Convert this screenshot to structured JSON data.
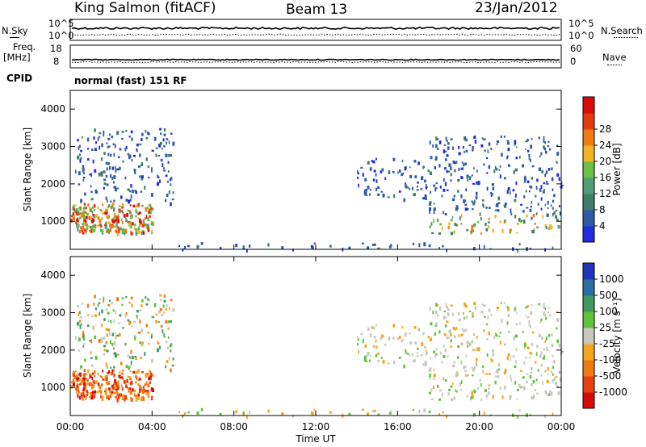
{
  "header": {
    "station": "King Salmon (fitACF)",
    "beam": "Beam 13",
    "date": "23/Jan/2012"
  },
  "top_panels": {
    "nsky_label": "N.Sky",
    "nsky_ticks": [
      "10^5",
      "10^0"
    ],
    "nsearch_label": "N.Search",
    "nsearch_ticks": [
      "10^5",
      "10^0"
    ],
    "freq_label": "Freq.",
    "freq_unit": "[MHz]",
    "freq_ticks": [
      "18",
      "8"
    ],
    "nave_label": "Nave",
    "nave_ticks": [
      "60",
      "0"
    ],
    "cpid_label": "CPID",
    "cpid_value": "normal (fast) 151 RF"
  },
  "chart_data": [
    {
      "type": "heatmap",
      "name": "power",
      "ylabel": "Slant Range [km]",
      "ylim": [
        250,
        4500
      ],
      "yticks": [
        1000,
        2000,
        3000,
        4000
      ],
      "xlim": [
        0,
        24
      ],
      "colorbar": {
        "label": "Power [dB]",
        "range": [
          0,
          32
        ],
        "tick_values": [
          4,
          8,
          12,
          16,
          20,
          24,
          28
        ],
        "tick_labels": [
          "4",
          "8",
          "12",
          "16",
          "20",
          "24",
          "28"
        ],
        "colors": [
          "#1f2bdc",
          "#2f5aa8",
          "#3f7b6a",
          "#4f9e78",
          "#6cc044",
          "#f0b424",
          "#f07b12",
          "#e53a0d",
          "#d80a0a"
        ]
      },
      "echo_regions": [
        {
          "t0": 0.0,
          "t1": 4.0,
          "r0": 700,
          "r1": 1500,
          "level": "high"
        },
        {
          "t0": 0.2,
          "t1": 5.0,
          "r0": 1500,
          "r1": 3500,
          "level": "low"
        },
        {
          "t0": 14.0,
          "t1": 17.5,
          "r0": 1600,
          "r1": 2700,
          "level": "low"
        },
        {
          "t0": 17.5,
          "t1": 24.0,
          "r0": 700,
          "r1": 3300,
          "level": "mixed"
        },
        {
          "t0": 5.0,
          "t1": 24.0,
          "r0": 250,
          "r1": 450,
          "level": "low"
        }
      ]
    },
    {
      "type": "heatmap",
      "name": "velocity",
      "ylabel": "Slant Range [km]",
      "ylim": [
        250,
        4500
      ],
      "yticks": [
        1000,
        2000,
        3000,
        4000
      ],
      "xlim": [
        0,
        24
      ],
      "xlabel": "Time UT",
      "xtick_labels": [
        "00:00",
        "04:00",
        "08:00",
        "12:00",
        "16:00",
        "20:00",
        "00:00"
      ],
      "colorbar": {
        "label": "Velocity [m s⁻¹]",
        "tick_labels": [
          "1000",
          "500",
          "100",
          "25",
          "-25",
          "-100",
          "-500",
          "-1000"
        ],
        "colors": [
          "#2233bb",
          "#2a6fa0",
          "#3e9860",
          "#5cc43a",
          "#c8c8c0",
          "#f4a51e",
          "#f07a10",
          "#e8400c",
          "#d80a0a"
        ]
      },
      "echo_regions": [
        {
          "t0": 0.0,
          "t1": 4.0,
          "r0": 700,
          "r1": 1500,
          "velocity": "negative"
        },
        {
          "t0": 0.2,
          "t1": 5.0,
          "r0": 1500,
          "r1": 3500,
          "velocity": "mixed"
        },
        {
          "t0": 14.0,
          "t1": 17.5,
          "r0": 1600,
          "r1": 2700,
          "velocity": "near-zero"
        },
        {
          "t0": 17.5,
          "t1": 24.0,
          "r0": 700,
          "r1": 3300,
          "velocity": "near-zero"
        },
        {
          "t0": 5.0,
          "t1": 24.0,
          "r0": 250,
          "r1": 450,
          "velocity": "positive-low"
        }
      ]
    }
  ],
  "colors": {
    "axis": "#000000",
    "background": "#ffffff"
  }
}
